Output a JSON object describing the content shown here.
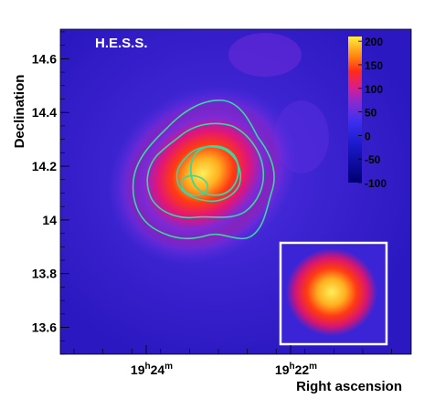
{
  "chart_data": {
    "type": "heatmap",
    "plot_label": "H.E.S.S.",
    "xlabel": "Right ascension",
    "ylabel": "Declination",
    "x_ticks": [
      {
        "hours": 19,
        "minutes": 24,
        "h_label": "19",
        "h_sup": "h",
        "m_label": "24",
        "m_sup": "m"
      },
      {
        "hours": 19,
        "minutes": 22,
        "h_label": "19",
        "h_sup": "h",
        "m_label": "22",
        "m_sup": "m"
      }
    ],
    "y_ticks": [
      {
        "value": 14.6,
        "label": "14.6"
      },
      {
        "value": 14.4,
        "label": "14.4"
      },
      {
        "value": 14.2,
        "label": "14.2"
      },
      {
        "value": 14.0,
        "label": "14"
      },
      {
        "value": 13.8,
        "label": "13.8"
      },
      {
        "value": 13.6,
        "label": "13.6"
      }
    ],
    "ylim": [
      13.5,
      14.71
    ],
    "colorbar": {
      "range": [
        -100,
        210
      ],
      "ticks": [
        {
          "value": 200,
          "label": "200"
        },
        {
          "value": 150,
          "label": "150"
        },
        {
          "value": 100,
          "label": "100"
        },
        {
          "value": 50,
          "label": "50"
        },
        {
          "value": 0,
          "label": "0"
        },
        {
          "value": -50,
          "label": "-50"
        },
        {
          "value": -100,
          "label": "-100"
        }
      ]
    },
    "source_peak": {
      "ra_minutes": 23.3,
      "dec": 14.17,
      "value": 205
    },
    "background_level": 30,
    "contour_color": "#3ad7a0",
    "inset": "point spread function"
  }
}
